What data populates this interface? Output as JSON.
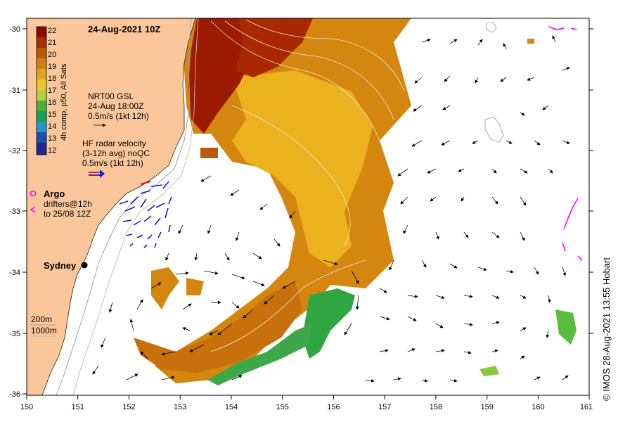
{
  "title": "24-Aug-2021 10Z",
  "colorbar": {
    "label": "4h comp, p50, All Sats",
    "ticks": [
      "22",
      "21",
      "20",
      "19",
      "18",
      "17",
      "16",
      "15",
      "14",
      "13",
      "12"
    ],
    "colors": [
      "#8b0a00",
      "#a83000",
      "#b85a08",
      "#cd8210",
      "#e0a41c",
      "#efc428",
      "#b4d23c",
      "#46b43c",
      "#14a05a",
      "#2896c8",
      "#1e50b4",
      "#1e2890"
    ]
  },
  "legend": {
    "nrt_line1": "NRT00 GSL",
    "nrt_line2": "24-Aug 18:00Z",
    "nrt_line3": "0.5m/s (1kt 12h)",
    "hf_line1": "HF radar velocity",
    "hf_line2": "(3-12h avg) noQC",
    "hf_line3": "0.5m/s (1kt 12h)",
    "argo_label": "Argo",
    "drifters_line1": "drifters@12h",
    "drifters_line2": "to 25/08 12Z",
    "depth_200": "200m",
    "depth_1000": "1000m"
  },
  "place": {
    "city": "Sydney"
  },
  "axes": {
    "x_ticks": [
      "150",
      "151",
      "152",
      "153",
      "154",
      "155",
      "156",
      "157",
      "158",
      "159",
      "160",
      "161"
    ],
    "y_ticks": [
      "-30",
      "-31",
      "-32",
      "-33",
      "-34",
      "-35",
      "-36"
    ]
  },
  "credit": "© IMOS 28-Aug-2021 13:55 Hobart",
  "colors": {
    "land": "#fbc79a",
    "argo": "#ff00ff",
    "hf_blue": "#1a1acc",
    "hf_red": "#e01010"
  }
}
